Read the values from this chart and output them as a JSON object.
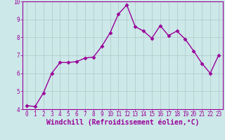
{
  "x": [
    0,
    1,
    2,
    3,
    4,
    5,
    6,
    7,
    8,
    9,
    10,
    11,
    12,
    13,
    14,
    15,
    16,
    17,
    18,
    19,
    20,
    21,
    22,
    23
  ],
  "y": [
    4.2,
    4.15,
    4.9,
    6.0,
    6.6,
    6.6,
    6.65,
    6.85,
    6.9,
    7.5,
    8.25,
    9.3,
    9.8,
    8.6,
    8.35,
    7.95,
    8.65,
    8.1,
    8.35,
    7.9,
    7.25,
    6.55,
    6.0,
    7.0
  ],
  "line_color": "#990099",
  "marker": "D",
  "marker_size": 2.5,
  "bg_color": "#cce8e8",
  "grid_color": "#b0c8c8",
  "xlabel": "Windchill (Refroidissement éolien,°C)",
  "xlabel_color": "#990099",
  "xlim_min": -0.5,
  "xlim_max": 23.5,
  "ylim": [
    4,
    10
  ],
  "yticks": [
    4,
    5,
    6,
    7,
    8,
    9,
    10
  ],
  "xticks": [
    0,
    1,
    2,
    3,
    4,
    5,
    6,
    7,
    8,
    9,
    10,
    11,
    12,
    13,
    14,
    15,
    16,
    17,
    18,
    19,
    20,
    21,
    22,
    23
  ],
  "tick_color": "#990099",
  "tick_labelsize": 5.5,
  "xlabel_fontsize": 7.0,
  "spine_color": "#990099",
  "linewidth": 1.0
}
